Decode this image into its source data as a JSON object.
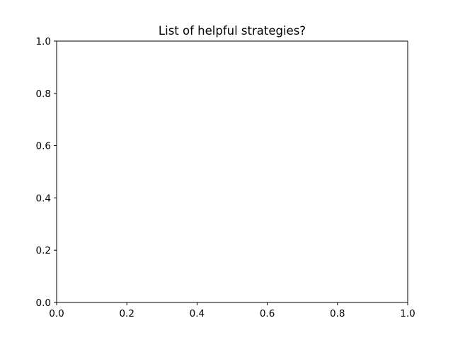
{
  "chart_data": {
    "type": "line",
    "title": "List of helpful strategies?",
    "xlabel": "",
    "ylabel": "",
    "xlim": [
      0.0,
      1.0
    ],
    "ylim": [
      0.0,
      1.0
    ],
    "x_ticks": [
      "0.0",
      "0.2",
      "0.4",
      "0.6",
      "0.8",
      "1.0"
    ],
    "y_ticks": [
      "0.0",
      "0.2",
      "0.4",
      "0.6",
      "0.8",
      "1.0"
    ],
    "series": [],
    "grid": false,
    "legend": "none"
  }
}
